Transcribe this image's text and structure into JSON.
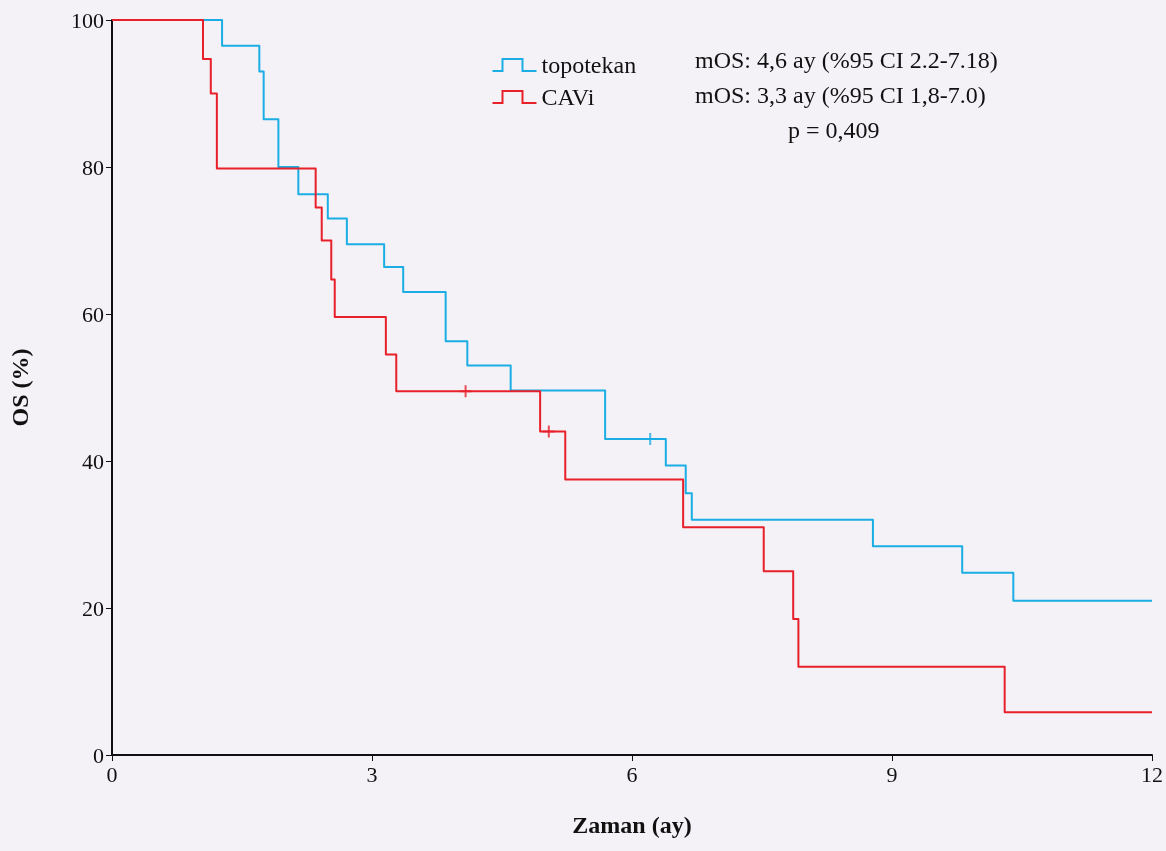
{
  "chart_data": {
    "type": "step",
    "xlabel": "Zaman (ay)",
    "ylabel": "OS (%)",
    "xlim": [
      0,
      12
    ],
    "xticks": [
      0,
      3,
      6,
      9,
      12
    ],
    "ylim": [
      0,
      100
    ],
    "yticks": [
      0,
      20,
      40,
      60,
      80,
      100
    ],
    "grid": false,
    "legend": "top",
    "annotations": [
      "mOS: 4,6 ay (%95 CI 2.2-7.18)",
      "mOS: 3,3 ay (%95 CI 1,8-7.0)",
      "p = 0,409"
    ],
    "series": [
      {
        "name": "topotekan",
        "color": "#1aaee4",
        "x": [
          0,
          1.27,
          1.7,
          1.75,
          1.92,
          2.15,
          2.49,
          2.71,
          3.14,
          3.36,
          3.85,
          4.1,
          4.6,
          5.69,
          6.39,
          6.62,
          6.69,
          8.78,
          9.81,
          10.4,
          12
        ],
        "values": [
          100,
          96.5,
          93,
          86.5,
          80,
          76.3,
          73,
          69.5,
          66.4,
          63,
          56.3,
          53,
          49.6,
          43,
          39.4,
          35.6,
          32,
          28.4,
          24.8,
          21,
          21
        ]
      },
      {
        "name": "CAVi",
        "color": "#e8202a",
        "x": [
          0,
          1.05,
          1.14,
          1.21,
          2.35,
          2.42,
          2.53,
          2.57,
          3.16,
          3.28,
          4.94,
          5.23,
          6.59,
          7.52,
          7.86,
          7.92,
          10.3,
          12
        ],
        "values": [
          100,
          94.7,
          90,
          79.8,
          74.5,
          70,
          64.7,
          59.6,
          54.5,
          49.5,
          44,
          37.5,
          31,
          25,
          18.5,
          12,
          5.8,
          5.8
        ]
      },
      {
        "type": "scatter",
        "marker": "cross",
        "color": "#1aaee4",
        "x": [
          6.21
        ],
        "values": [
          43
        ]
      },
      {
        "type": "scatter",
        "marker": "cross",
        "color": "#e8202a",
        "x": [
          4.08,
          5.04
        ],
        "values": [
          49.5,
          44
        ]
      }
    ]
  }
}
